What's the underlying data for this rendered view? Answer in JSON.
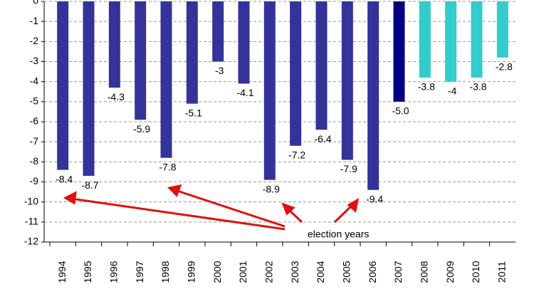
{
  "chart_data": {
    "type": "bar",
    "categories": [
      "1994",
      "1995",
      "1996",
      "1997",
      "1998",
      "1999",
      "2000",
      "2001",
      "2002",
      "2003",
      "2004",
      "2005",
      "2006",
      "2007",
      "2008",
      "2009",
      "2010",
      "2011"
    ],
    "values": [
      -8.4,
      -8.7,
      -4.3,
      -5.9,
      -7.8,
      -5.1,
      -3,
      -4.1,
      -8.9,
      -7.2,
      -6.4,
      -7.9,
      -9.4,
      -5.0,
      -3.8,
      -4,
      -3.8,
      -2.8
    ],
    "value_labels": [
      "-8.4",
      "-8.7",
      "-4.3",
      "-5.9",
      "-7.8",
      "-5.1",
      "-3",
      "-4.1",
      "-8.9",
      "-7.2",
      "-6.4",
      "-7.9",
      "-9.4",
      "-5.0",
      "-3.8",
      "-4",
      "-3.8",
      "-2.8"
    ],
    "colors": [
      "#333399",
      "#333399",
      "#333399",
      "#333399",
      "#333399",
      "#333399",
      "#333399",
      "#333399",
      "#333399",
      "#333399",
      "#333399",
      "#333399",
      "#333399",
      "#000080",
      "#33cccc",
      "#33cccc",
      "#33cccc",
      "#33cccc"
    ],
    "ylim": [
      -12,
      0
    ],
    "yticks": [
      0,
      -1,
      -2,
      -3,
      -4,
      -5,
      -6,
      -7,
      -8,
      -9,
      -10,
      -11,
      -12
    ],
    "grid": true,
    "annotation": "election years"
  }
}
